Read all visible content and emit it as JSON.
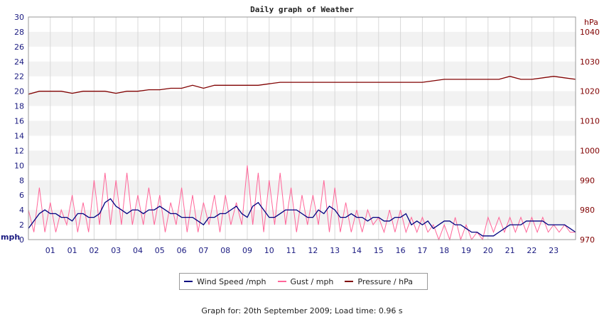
{
  "chart_data": {
    "type": "line",
    "title": "Daily graph of Weather",
    "xlabel": "",
    "y_left": {
      "label": "mph",
      "min": 0,
      "max": 30,
      "ticks": [
        0,
        2,
        4,
        6,
        8,
        10,
        12,
        14,
        16,
        18,
        20,
        22,
        24,
        26,
        28,
        30
      ]
    },
    "y_right": {
      "label": "hPa",
      "min": 970,
      "max": 1045,
      "ticks": [
        970,
        980,
        990,
        1000,
        1010,
        1020,
        1030,
        1040
      ]
    },
    "x_ticks": [
      "01",
      "01",
      "02",
      "03",
      "04",
      "05",
      "06",
      "07",
      "08",
      "09",
      "10",
      "11",
      "12",
      "13",
      "14",
      "15",
      "16",
      "17",
      "18",
      "19",
      "20",
      "21",
      "22",
      "23"
    ],
    "x_range_hours": [
      0,
      25
    ],
    "grid": "on",
    "legend": "bottom",
    "series": [
      {
        "name": "Wind Speed /mph",
        "axis": "left",
        "color": "#000080",
        "x": [
          0,
          0.25,
          0.5,
          0.75,
          1,
          1.25,
          1.5,
          1.75,
          2,
          2.25,
          2.5,
          2.75,
          3,
          3.25,
          3.5,
          3.75,
          4,
          4.25,
          4.5,
          4.75,
          5,
          5.25,
          5.5,
          5.75,
          6,
          6.25,
          6.5,
          6.75,
          7,
          7.25,
          7.5,
          7.75,
          8,
          8.25,
          8.5,
          8.75,
          9,
          9.25,
          9.5,
          9.75,
          10,
          10.25,
          10.5,
          10.75,
          11,
          11.25,
          11.5,
          11.75,
          12,
          12.25,
          12.5,
          12.75,
          13,
          13.25,
          13.5,
          13.75,
          14,
          14.25,
          14.5,
          14.75,
          15,
          15.25,
          15.5,
          15.75,
          16,
          16.25,
          16.5,
          16.75,
          17,
          17.25,
          17.5,
          17.75,
          18,
          18.25,
          18.5,
          18.75,
          19,
          19.25,
          19.5,
          19.75,
          20,
          20.25,
          20.5,
          20.75,
          21,
          21.25,
          21.5,
          21.75,
          22,
          22.25,
          22.5,
          22.75,
          23,
          23.25,
          23.5,
          23.75,
          24,
          24.25,
          24.5,
          24.75,
          25
        ],
        "values": [
          1.5,
          2.5,
          3.5,
          4,
          3.5,
          3.5,
          3,
          3,
          2.5,
          3.5,
          3.5,
          3,
          3,
          3.5,
          5,
          5.5,
          4.5,
          4,
          3.5,
          4,
          4,
          3.5,
          4,
          4,
          4.5,
          4,
          3.5,
          3.5,
          3,
          3,
          3,
          2.5,
          2,
          3,
          3,
          3.5,
          3.5,
          4,
          4.5,
          3.5,
          3,
          4.5,
          5,
          4,
          3,
          3,
          3.5,
          4,
          4,
          4,
          3.5,
          3,
          3,
          4,
          3.5,
          4.5,
          4,
          3,
          3,
          3.5,
          3,
          3,
          2.5,
          3,
          3,
          2.5,
          2.5,
          3,
          3,
          3.5,
          2,
          2.5,
          2,
          2.5,
          1.5,
          2,
          2.5,
          2.5,
          2,
          2,
          1.5,
          1,
          1,
          0.5,
          0.5,
          0.5,
          1,
          1.5,
          2,
          2,
          2,
          2.5,
          2.5,
          2.5,
          2.5,
          2,
          2,
          2,
          2,
          1.5,
          1
        ]
      },
      {
        "name": "Gust / mph",
        "axis": "left",
        "color": "#ff6699",
        "x": [
          0,
          0.25,
          0.5,
          0.75,
          1,
          1.25,
          1.5,
          1.75,
          2,
          2.25,
          2.5,
          2.75,
          3,
          3.25,
          3.5,
          3.75,
          4,
          4.25,
          4.5,
          4.75,
          5,
          5.25,
          5.5,
          5.75,
          6,
          6.25,
          6.5,
          6.75,
          7,
          7.25,
          7.5,
          7.75,
          8,
          8.25,
          8.5,
          8.75,
          9,
          9.25,
          9.5,
          9.75,
          10,
          10.25,
          10.5,
          10.75,
          11,
          11.25,
          11.5,
          11.75,
          12,
          12.25,
          12.5,
          12.75,
          13,
          13.25,
          13.5,
          13.75,
          14,
          14.25,
          14.5,
          14.75,
          15,
          15.25,
          15.5,
          15.75,
          16,
          16.25,
          16.5,
          16.75,
          17,
          17.25,
          17.5,
          17.75,
          18,
          18.25,
          18.5,
          18.75,
          19,
          19.25,
          19.5,
          19.75,
          20,
          20.25,
          20.5,
          20.75,
          21,
          21.25,
          21.5,
          21.75,
          22,
          22.25,
          22.5,
          22.75,
          23,
          23.25,
          23.5,
          23.75,
          24,
          24.25,
          24.5,
          24.75,
          25
        ],
        "values": [
          4,
          1,
          7,
          1,
          5,
          1,
          4,
          2,
          6,
          1,
          5,
          1,
          8,
          2,
          9,
          2,
          8,
          2,
          9,
          2,
          6,
          2,
          7,
          2,
          6,
          1,
          5,
          2,
          7,
          1,
          6,
          1,
          5,
          2,
          6,
          1,
          6,
          2,
          5,
          2,
          10,
          2,
          9,
          1,
          8,
          2,
          9,
          2,
          7,
          1,
          6,
          2,
          6,
          2,
          8,
          1,
          7,
          1,
          5,
          1,
          4,
          1,
          4,
          2,
          3,
          1,
          4,
          1,
          4,
          1,
          3,
          1,
          3,
          1,
          2,
          0,
          2,
          0,
          3,
          0,
          2,
          0,
          1,
          0,
          3,
          1,
          3,
          1,
          3,
          1,
          3,
          1,
          3,
          1,
          3,
          1,
          2,
          1,
          2,
          1,
          1
        ]
      },
      {
        "name": "Pressure / hPa",
        "axis": "right",
        "color": "#800000",
        "x": [
          0,
          0.5,
          1,
          1.5,
          2,
          2.5,
          3,
          3.5,
          4,
          4.5,
          5,
          5.5,
          6,
          6.5,
          7,
          7.5,
          8,
          8.5,
          9,
          9.5,
          10,
          10.5,
          11,
          11.5,
          12,
          12.5,
          13,
          13.5,
          14,
          14.5,
          15,
          15.5,
          16,
          16.5,
          17,
          17.5,
          18,
          18.5,
          19,
          19.5,
          20,
          20.5,
          21,
          21.5,
          22,
          22.5,
          23,
          23.5,
          24,
          24.5,
          25
        ],
        "values": [
          1019,
          1020,
          1020,
          1020,
          1019.3,
          1020,
          1020,
          1020,
          1019.3,
          1020,
          1020,
          1020.5,
          1020.5,
          1021,
          1021,
          1022,
          1021,
          1022,
          1022,
          1022,
          1022,
          1022,
          1022.5,
          1023,
          1023,
          1023,
          1023,
          1023,
          1023,
          1023,
          1023,
          1023,
          1023,
          1023,
          1023,
          1023,
          1023,
          1023.5,
          1024,
          1024,
          1024,
          1024,
          1024,
          1024,
          1025,
          1024,
          1024,
          1024.5,
          1025,
          1024.5,
          1024
        ]
      }
    ]
  },
  "legend": {
    "items": [
      {
        "label": "Wind Speed /mph",
        "color": "#000080"
      },
      {
        "label": "Gust / mph",
        "color": "#ff6699"
      },
      {
        "label": "Pressure / hPa",
        "color": "#800000"
      }
    ]
  },
  "footer": {
    "text": "Graph for: 20th September 2009; Load time: 0.96 s"
  }
}
